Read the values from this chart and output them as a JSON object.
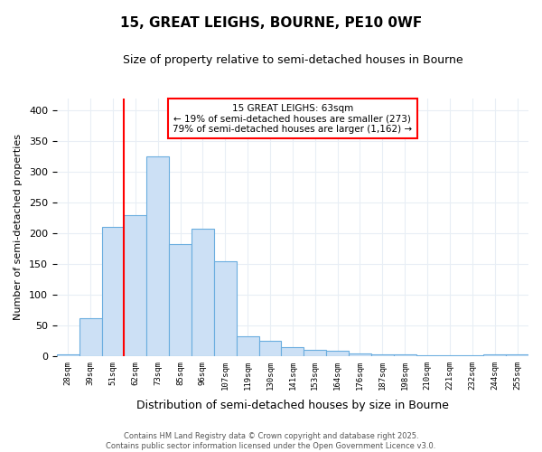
{
  "title": "15, GREAT LEIGHS, BOURNE, PE10 0WF",
  "subtitle": "Size of property relative to semi-detached houses in Bourne",
  "xlabel": "Distribution of semi-detached houses by size in Bourne",
  "ylabel": "Number of semi-detached properties",
  "bin_labels": [
    "28sqm",
    "39sqm",
    "51sqm",
    "62sqm",
    "73sqm",
    "85sqm",
    "96sqm",
    "107sqm",
    "119sqm",
    "130sqm",
    "141sqm",
    "153sqm",
    "164sqm",
    "176sqm",
    "187sqm",
    "198sqm",
    "210sqm",
    "221sqm",
    "232sqm",
    "244sqm",
    "255sqm"
  ],
  "values": [
    2,
    62,
    210,
    230,
    325,
    183,
    207,
    155,
    32,
    25,
    14,
    10,
    9,
    4,
    3,
    2,
    1,
    1,
    1,
    3,
    2
  ],
  "bar_color": "#cce0f5",
  "bar_edge_color": "#6aaddf",
  "marker_bin_index": 3,
  "annotation_title": "15 GREAT LEIGHS: 63sqm",
  "annotation_line1": "← 19% of semi-detached houses are smaller (273)",
  "annotation_line2": "79% of semi-detached houses are larger (1,162) →",
  "annotation_box_color": "red",
  "ylim": [
    0,
    420
  ],
  "yticks": [
    0,
    50,
    100,
    150,
    200,
    250,
    300,
    350,
    400
  ],
  "footer1": "Contains HM Land Registry data © Crown copyright and database right 2025.",
  "footer2": "Contains public sector information licensed under the Open Government Licence v3.0.",
  "bg_color": "#ffffff",
  "plot_bg_color": "#ffffff",
  "grid_color": "#e8eef5"
}
